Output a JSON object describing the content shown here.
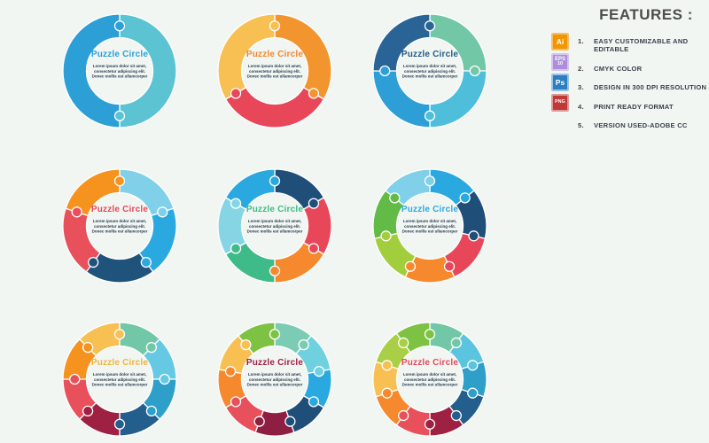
{
  "background_color": "#F1F6F3",
  "center": {
    "title": "Puzzle Circle",
    "lines": [
      "Lorem ipsum dolor  sit amet,",
      "consectetur adipiscing elit.",
      "Donec mollis est ullamcorper"
    ],
    "body_text_color": "#26374B"
  },
  "puzzles": [
    {
      "name": "puzzle-2-pieces",
      "title_color": "#2C9FD6",
      "segments": [
        "#5BC3D2",
        "#2C9FD6"
      ]
    },
    {
      "name": "puzzle-3-pieces",
      "title_color": "#F2872E",
      "segments": [
        "#F2952F",
        "#E8475A",
        "#F8C053"
      ]
    },
    {
      "name": "puzzle-4-pieces",
      "title_color": "#225C86",
      "segments": [
        "#72C8A6",
        "#4FBEDB",
        "#2E9FD6",
        "#2A6496"
      ]
    },
    {
      "name": "puzzle-5-pieces",
      "title_color": "#E8475A",
      "segments": [
        "#7FD0E8",
        "#2AA9E0",
        "#20537C",
        "#E8505B",
        "#F6921E"
      ]
    },
    {
      "name": "puzzle-6-pieces",
      "title_color": "#3DBB85",
      "segments": [
        "#1F4E79",
        "#E8475A",
        "#F6892E",
        "#3FBB8A",
        "#86D5E5",
        "#2AA9E0"
      ]
    },
    {
      "name": "puzzle-7-pieces",
      "title_color": "#2AA9E0",
      "segments": [
        "#2AA9E0",
        "#1F4E79",
        "#E8475A",
        "#F6892E",
        "#A2CE3E",
        "#62BB46",
        "#7FD0E8"
      ]
    },
    {
      "name": "puzzle-8-pieces",
      "title_color": "#F0B43C",
      "segments": [
        "#72C8A6",
        "#66C9E4",
        "#2D9FC9",
        "#235E8C",
        "#9E2043",
        "#E8505B",
        "#F6921E",
        "#F8C053"
      ]
    },
    {
      "name": "puzzle-9-pieces",
      "title_color": "#9E2043",
      "segments": [
        "#7CCBB4",
        "#6FD0E0",
        "#2AA9E0",
        "#1F4E79",
        "#8E1F42",
        "#E8505B",
        "#F6892E",
        "#F8C053",
        "#7DC242"
      ]
    },
    {
      "name": "puzzle-10-pieces",
      "title_color": "#E8475A",
      "segments": [
        "#72C8A6",
        "#5BC4DF",
        "#2D9FC9",
        "#235E8C",
        "#9E2043",
        "#E8505B",
        "#F6892E",
        "#F8C053",
        "#A8CF45",
        "#7DC242"
      ]
    }
  ],
  "features": {
    "title": "FEATURES :",
    "title_color": "#4D4D4D",
    "text_color": "#39414B",
    "icons": [
      {
        "name": "ai-icon",
        "label": "Ai",
        "label2": "",
        "bg": "#F29500",
        "border": "#F7BE6B"
      },
      {
        "name": "eps-icon",
        "label": "EPS",
        "label2": "10",
        "bg": "#AC8FD8",
        "border": "#D4C6EC"
      },
      {
        "name": "ps-icon",
        "label": "Ps",
        "label2": "",
        "bg": "#2E7EC2",
        "border": "#9CC4E4"
      },
      {
        "name": "png-icon",
        "label": "PNG",
        "label2": "",
        "bg": "#C13937",
        "border": "#DC9B99"
      }
    ],
    "items": [
      {
        "num": "1.",
        "text": "EASY CUSTOMIZABLE AND EDITABLE"
      },
      {
        "num": "2.",
        "text": "CMYK COLOR"
      },
      {
        "num": "3.",
        "text": "DESIGN IN 300 DPI RESOLUTION"
      },
      {
        "num": "4.",
        "text": "PRINT READY FORMAT"
      },
      {
        "num": "5.",
        "text": "VERSION USED-ADOBE CC"
      }
    ]
  }
}
